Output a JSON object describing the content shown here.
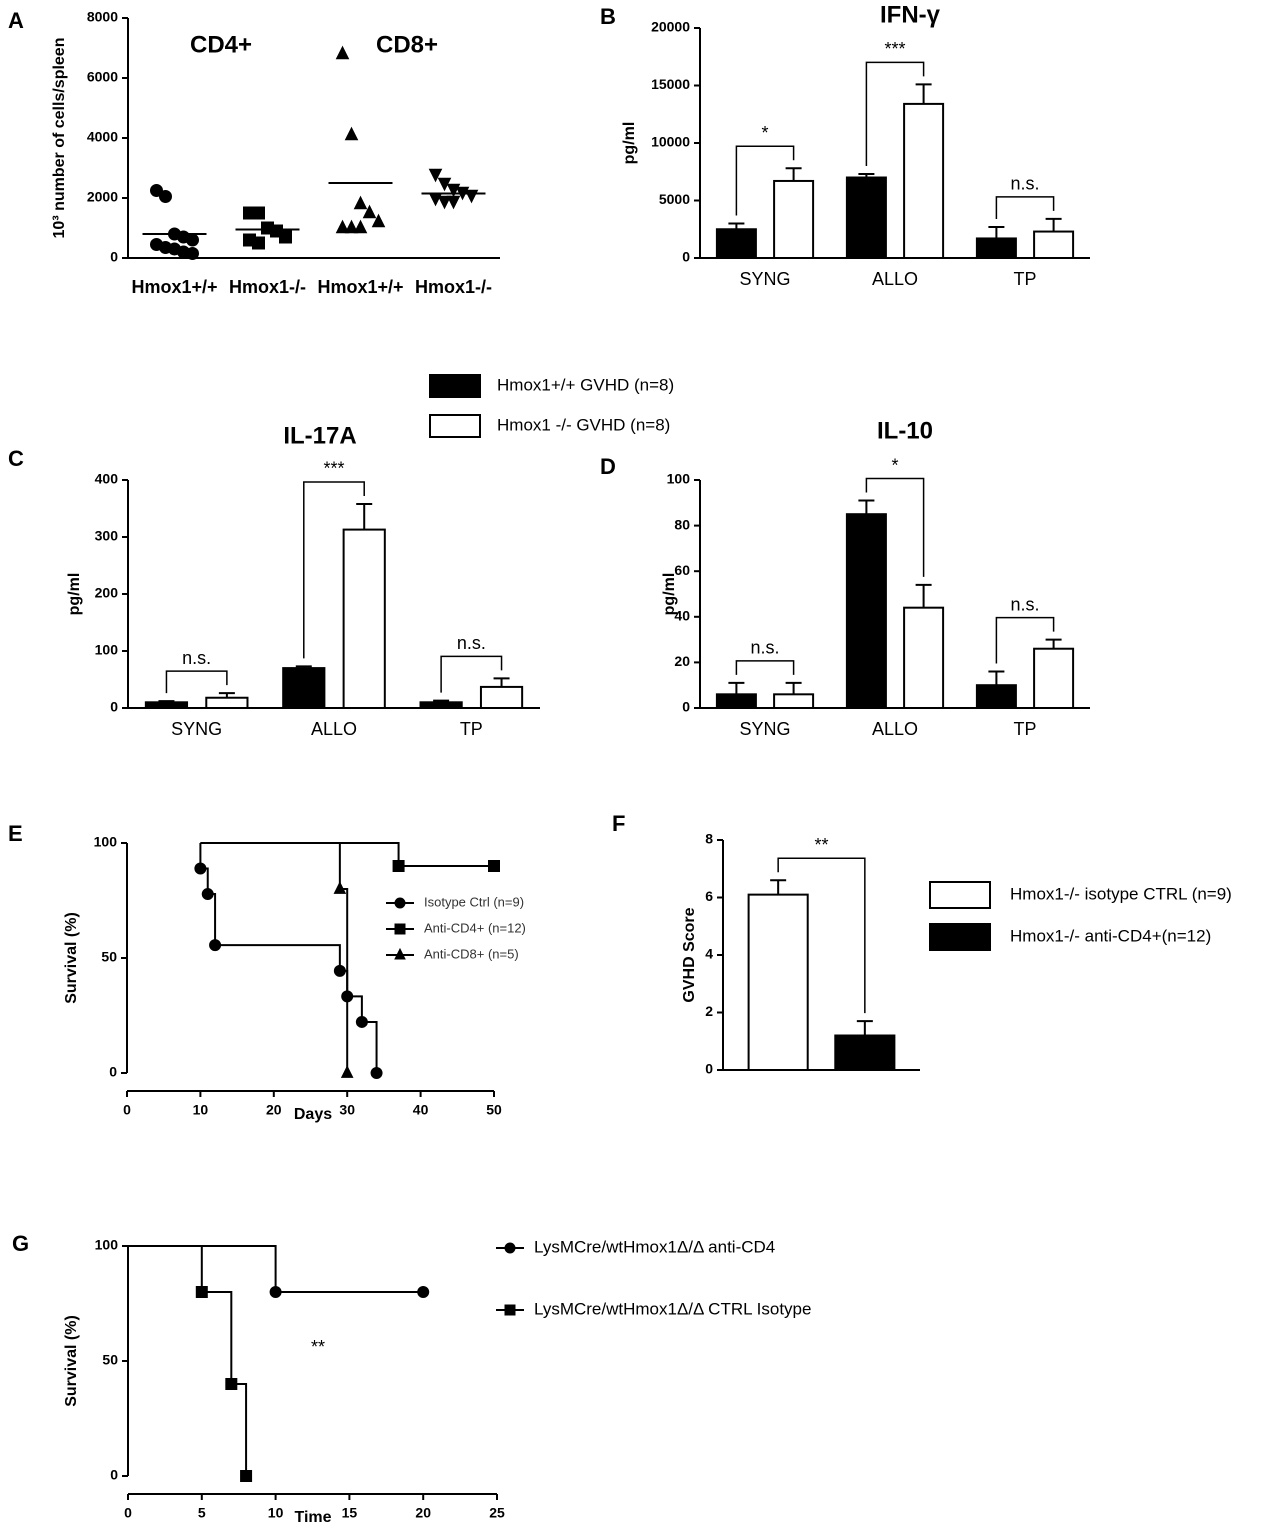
{
  "chart_data": [
    {
      "type": "dot",
      "panel": "A",
      "ylabel": "10³ number of cells/spleen",
      "categories": [
        "Hmox1+/+",
        "Hmox1-/-",
        "Hmox1+/+",
        "Hmox1-/-"
      ],
      "annotations": [
        "CD4+",
        "CD8+"
      ],
      "markers": [
        "circle",
        "square",
        "triangle",
        "triangle-down"
      ],
      "color": "#000000",
      "points": [
        [
          2250,
          2050,
          800,
          700,
          600,
          450,
          350,
          300,
          200,
          150
        ],
        [
          1500,
          1500,
          1000,
          900,
          700,
          600,
          500
        ],
        [
          6800,
          4100,
          1800,
          1500,
          1200,
          1000,
          1000,
          1000
        ],
        [
          2800,
          2500,
          2300,
          2200,
          2100,
          2000,
          1900,
          1900
        ]
      ],
      "means": [
        800,
        950,
        2500,
        2150
      ],
      "ylim": [
        0,
        8000
      ],
      "yticks": [
        0,
        2000,
        4000,
        6000,
        8000
      ]
    },
    {
      "type": "bar",
      "panel": "B",
      "title": "IFN-γ",
      "ylabel": "pg/ml",
      "categories": [
        "SYNG",
        "ALLO",
        "TP"
      ],
      "series": [
        {
          "color": "#000000",
          "values": [
            2500,
            7000,
            1700
          ],
          "errors": [
            500,
            300,
            1000
          ]
        },
        {
          "color": "#ffffff",
          "values": [
            6700,
            13400,
            2300
          ],
          "errors": [
            1100,
            1700,
            1100
          ]
        }
      ],
      "significance": [
        "*",
        "***",
        "n.s."
      ],
      "ylim": [
        0,
        20000
      ],
      "yticks": [
        0,
        5000,
        10000,
        15000,
        20000
      ]
    },
    {
      "type": "bar",
      "panel": "C",
      "title": "IL-17A",
      "ylabel": "pg/ml",
      "categories": [
        "SYNG",
        "ALLO",
        "TP"
      ],
      "series": [
        {
          "color": "#000000",
          "values": [
            10,
            70,
            10
          ],
          "errors": [
            2,
            3,
            3
          ]
        },
        {
          "color": "#ffffff",
          "values": [
            18,
            313,
            37
          ],
          "errors": [
            8,
            45,
            15
          ]
        }
      ],
      "significance": [
        "n.s.",
        "***",
        "n.s."
      ],
      "ylim": [
        0,
        400
      ],
      "yticks": [
        0,
        100,
        200,
        300,
        400
      ]
    },
    {
      "type": "bar",
      "panel": "D",
      "title": "IL-10",
      "ylabel": "pg/ml",
      "categories": [
        "SYNG",
        "ALLO",
        "TP"
      ],
      "series": [
        {
          "color": "#000000",
          "values": [
            6,
            85,
            10
          ],
          "errors": [
            5,
            6,
            6
          ]
        },
        {
          "color": "#ffffff",
          "values": [
            6,
            44,
            26
          ],
          "errors": [
            5,
            10,
            4
          ]
        }
      ],
      "significance": [
        "n.s.",
        "*",
        "n.s."
      ],
      "ylim": [
        0,
        100
      ],
      "yticks": [
        0,
        20,
        40,
        60,
        80,
        100
      ]
    },
    {
      "type": "survival",
      "panel": "E",
      "ylabel": "Survival (%)",
      "xlabel": "Days",
      "series": [
        {
          "name": "Isotype Ctrl (n=9)",
          "marker": "circle",
          "color": "#000000",
          "x": [
            10,
            10,
            11,
            12,
            29,
            30,
            32,
            34
          ],
          "values": [
            100,
            88.9,
            77.8,
            55.6,
            44.4,
            33.3,
            22.2,
            0
          ]
        },
        {
          "name": "Anti-CD4+ (n=12)",
          "marker": "square",
          "color": "#000000",
          "x": [
            10,
            37,
            50
          ],
          "values": [
            100,
            90,
            90
          ]
        },
        {
          "name": "Anti-CD8+ (n=5)",
          "marker": "triangle",
          "color": "#000000",
          "x": [
            10,
            29,
            30
          ],
          "values": [
            100,
            80,
            0
          ]
        }
      ],
      "xlim": [
        0,
        50
      ],
      "xticks": [
        0,
        10,
        20,
        30,
        40,
        50
      ],
      "ylim": [
        0,
        100
      ],
      "yticks": [
        0,
        50,
        100
      ]
    },
    {
      "type": "bar",
      "panel": "F",
      "ylabel": "GVHD Score",
      "series": [
        {
          "name": "Hmox1-/- isotype CTRL (n=9)",
          "color": "#ffffff",
          "values": [
            6.1
          ],
          "errors": [
            0.5
          ]
        },
        {
          "name": "Hmox1-/- anti-CD4+(n=12)",
          "color": "#000000",
          "values": [
            1.2
          ],
          "errors": [
            0.5
          ]
        }
      ],
      "significance": [
        "**"
      ],
      "ylim": [
        0,
        8
      ],
      "yticks": [
        0,
        2,
        4,
        6,
        8
      ]
    },
    {
      "type": "survival",
      "panel": "G",
      "ylabel": "Survival (%)",
      "xlabel": "Time",
      "annotations": [
        "**"
      ],
      "series": [
        {
          "name": "LysMCre/wtHmox1Δ/Δ anti-CD4",
          "marker": "circle",
          "color": "#000000",
          "x": [
            0,
            10,
            20
          ],
          "values": [
            100,
            80,
            80
          ]
        },
        {
          "name": "LysMCre/wtHmox1Δ/Δ CTRL Isotype",
          "marker": "square",
          "color": "#000000",
          "x": [
            0,
            5,
            7,
            8
          ],
          "values": [
            100,
            80,
            40,
            0
          ]
        }
      ],
      "xlim": [
        0,
        25
      ],
      "xticks": [
        0,
        5,
        10,
        15,
        20,
        25
      ],
      "ylim": [
        0,
        100
      ],
      "yticks": [
        0,
        50,
        100
      ]
    }
  ],
  "legend": [
    {
      "name": "Hmox1+/+ GVHD (n=8)",
      "color": "#000000"
    },
    {
      "name": "Hmox1 -/- GVHD (n=8)",
      "color": "#ffffff"
    }
  ]
}
